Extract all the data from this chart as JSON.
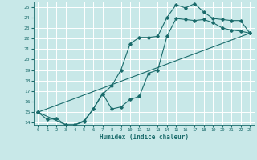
{
  "xlabel": "Humidex (Indice chaleur)",
  "xlim": [
    -0.5,
    23.5
  ],
  "ylim": [
    13.8,
    25.5
  ],
  "xticks": [
    0,
    1,
    2,
    3,
    4,
    5,
    6,
    7,
    8,
    9,
    10,
    11,
    12,
    13,
    14,
    15,
    16,
    17,
    18,
    19,
    20,
    21,
    22,
    23
  ],
  "yticks": [
    14,
    15,
    16,
    17,
    18,
    19,
    20,
    21,
    22,
    23,
    24,
    25
  ],
  "bg_color": "#c8e8e8",
  "grid_color": "#ffffff",
  "line_color": "#1a6b6b",
  "line1_x": [
    0,
    1,
    2,
    3,
    4,
    5,
    6,
    7,
    8,
    9,
    10,
    11,
    12,
    13,
    14,
    15,
    16,
    17,
    18,
    19,
    20,
    21,
    22,
    23
  ],
  "line1_y": [
    15.0,
    14.3,
    14.4,
    13.8,
    13.8,
    14.1,
    15.3,
    16.7,
    17.5,
    19.0,
    21.5,
    22.1,
    22.1,
    22.2,
    24.0,
    25.2,
    24.9,
    25.3,
    24.5,
    23.9,
    23.8,
    23.7,
    23.7,
    22.5
  ],
  "line2_x": [
    0,
    3,
    4,
    5,
    6,
    7,
    8,
    9,
    10,
    11,
    12,
    13,
    14,
    15,
    16,
    17,
    18,
    19,
    20,
    21,
    22,
    23
  ],
  "line2_y": [
    15.0,
    13.8,
    13.8,
    14.2,
    15.3,
    16.8,
    15.3,
    15.5,
    16.2,
    16.5,
    18.7,
    19.0,
    22.2,
    23.9,
    23.8,
    23.7,
    23.8,
    23.5,
    23.0,
    22.8,
    22.7,
    22.5
  ],
  "line3_x": [
    0,
    23
  ],
  "line3_y": [
    15.0,
    22.5
  ],
  "marker": "D",
  "markersize": 1.8,
  "linewidth": 0.8
}
